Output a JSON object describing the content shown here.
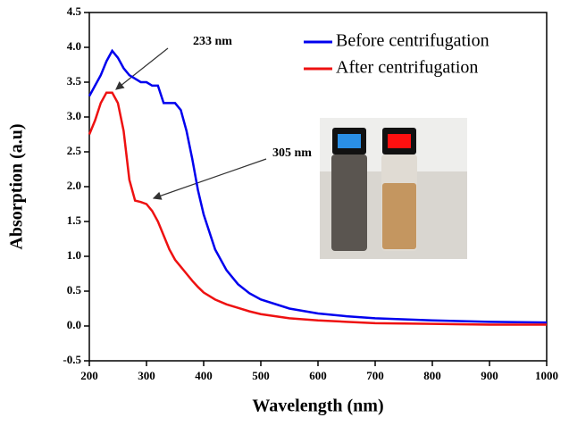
{
  "chart_data": {
    "type": "line",
    "xlabel": "Wavelength (nm)",
    "ylabel": "Absorption (a.u)",
    "x": [
      200,
      210,
      220,
      230,
      240,
      250,
      260,
      270,
      280,
      290,
      300,
      310,
      320,
      330,
      340,
      350,
      360,
      370,
      380,
      390,
      400,
      420,
      440,
      460,
      480,
      500,
      550,
      600,
      650,
      700,
      800,
      900,
      1000
    ],
    "series": [
      {
        "name": "Before centrifugation",
        "color": "#0000ee",
        "values": [
          3.3,
          3.45,
          3.6,
          3.8,
          3.95,
          3.85,
          3.7,
          3.6,
          3.55,
          3.5,
          3.5,
          3.45,
          3.45,
          3.2,
          3.2,
          3.2,
          3.1,
          2.8,
          2.4,
          1.95,
          1.6,
          1.1,
          0.8,
          0.6,
          0.47,
          0.38,
          0.25,
          0.18,
          0.14,
          0.11,
          0.08,
          0.06,
          0.05
        ]
      },
      {
        "name": "After centrifugation",
        "color": "#ee1111",
        "values": [
          2.75,
          2.95,
          3.2,
          3.35,
          3.35,
          3.2,
          2.8,
          2.1,
          1.8,
          1.78,
          1.75,
          1.65,
          1.5,
          1.3,
          1.1,
          0.95,
          0.85,
          0.75,
          0.65,
          0.56,
          0.48,
          0.38,
          0.31,
          0.26,
          0.21,
          0.17,
          0.11,
          0.08,
          0.06,
          0.04,
          0.03,
          0.02,
          0.02
        ]
      }
    ],
    "xlim": [
      200,
      1000
    ],
    "xticks": [
      200,
      300,
      400,
      500,
      600,
      700,
      800,
      900,
      1000
    ],
    "ylim": [
      -0.5,
      4.5
    ],
    "yticks": [
      -0.5,
      {
        "value": 0,
        "label": "0.0"
      },
      0.5,
      {
        "value": 1,
        "label": "1.0"
      },
      1.5,
      {
        "value": 2,
        "label": "2.0"
      },
      2.5,
      {
        "value": 3,
        "label": "3.0"
      },
      3.5,
      {
        "value": 4,
        "label": "4.0"
      },
      4.5
    ],
    "annotations": [
      "233 nm",
      "305 nm"
    ],
    "legend": "upper right"
  }
}
